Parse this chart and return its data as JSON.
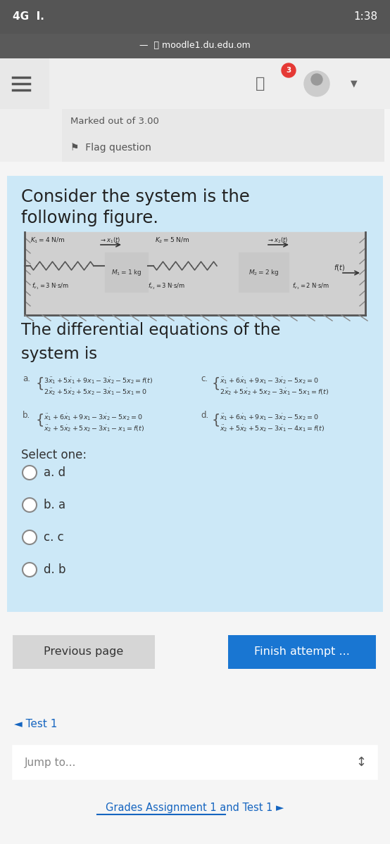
{
  "status_bar_bg": "#555555",
  "url_bar_bg": "#5a5a5a",
  "nav_bg": "#f0f0f0",
  "page_bg": "#f5f5f5",
  "card_bg": "#cce8f7",
  "marked_text": "Marked out of 3.00",
  "flag_text": "Flag question",
  "prev_btn": "Previous page",
  "finish_btn": "Finish attempt ...",
  "test_link": "◄ Test 1",
  "jump_text": "Jump to...",
  "grades_text": "Grades Assignment 1 and Test 1 ►",
  "select_one": "Select one:",
  "options": [
    "a. d",
    "b. a",
    "c. c",
    "d. b"
  ]
}
